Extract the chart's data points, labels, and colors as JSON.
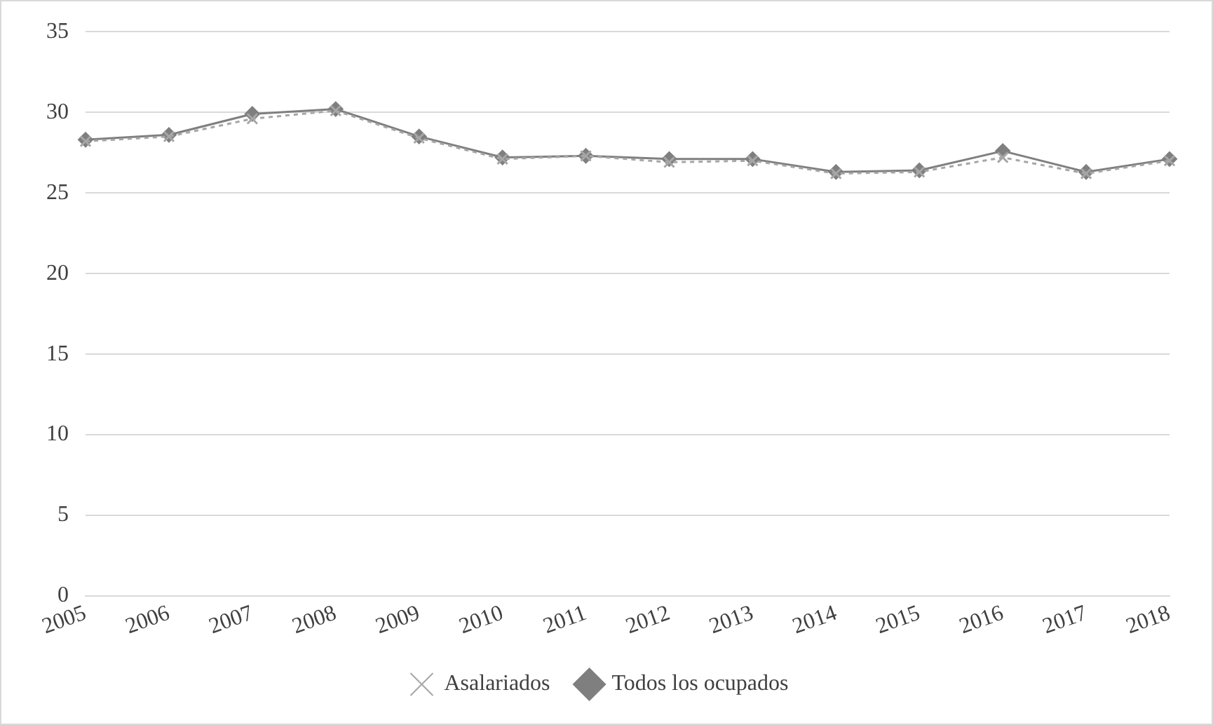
{
  "chart_data": {
    "type": "line",
    "categories": [
      "2005",
      "2006",
      "2007",
      "2008",
      "2009",
      "2010",
      "2011",
      "2012",
      "2013",
      "2014",
      "2015",
      "2016",
      "2017",
      "2018"
    ],
    "series": [
      {
        "name": "Asalariados",
        "color": "#a6a6a6",
        "marker": "cross",
        "line_style": "dotted",
        "values": [
          28.2,
          28.5,
          29.6,
          30.1,
          28.4,
          27.1,
          27.3,
          26.9,
          27.0,
          26.2,
          26.3,
          27.2,
          26.2,
          27.0
        ]
      },
      {
        "name": "Todos los ocupados",
        "color": "#7f7f7f",
        "marker": "diamond",
        "line_style": "solid",
        "values": [
          28.3,
          28.6,
          29.9,
          30.2,
          28.5,
          27.2,
          27.3,
          27.1,
          27.1,
          26.3,
          26.4,
          27.6,
          26.3,
          27.1
        ]
      }
    ],
    "ylim": [
      0,
      35
    ],
    "yticks": [
      0,
      5,
      10,
      15,
      20,
      25,
      30,
      35
    ],
    "grid": "y",
    "legend": "bottom"
  }
}
